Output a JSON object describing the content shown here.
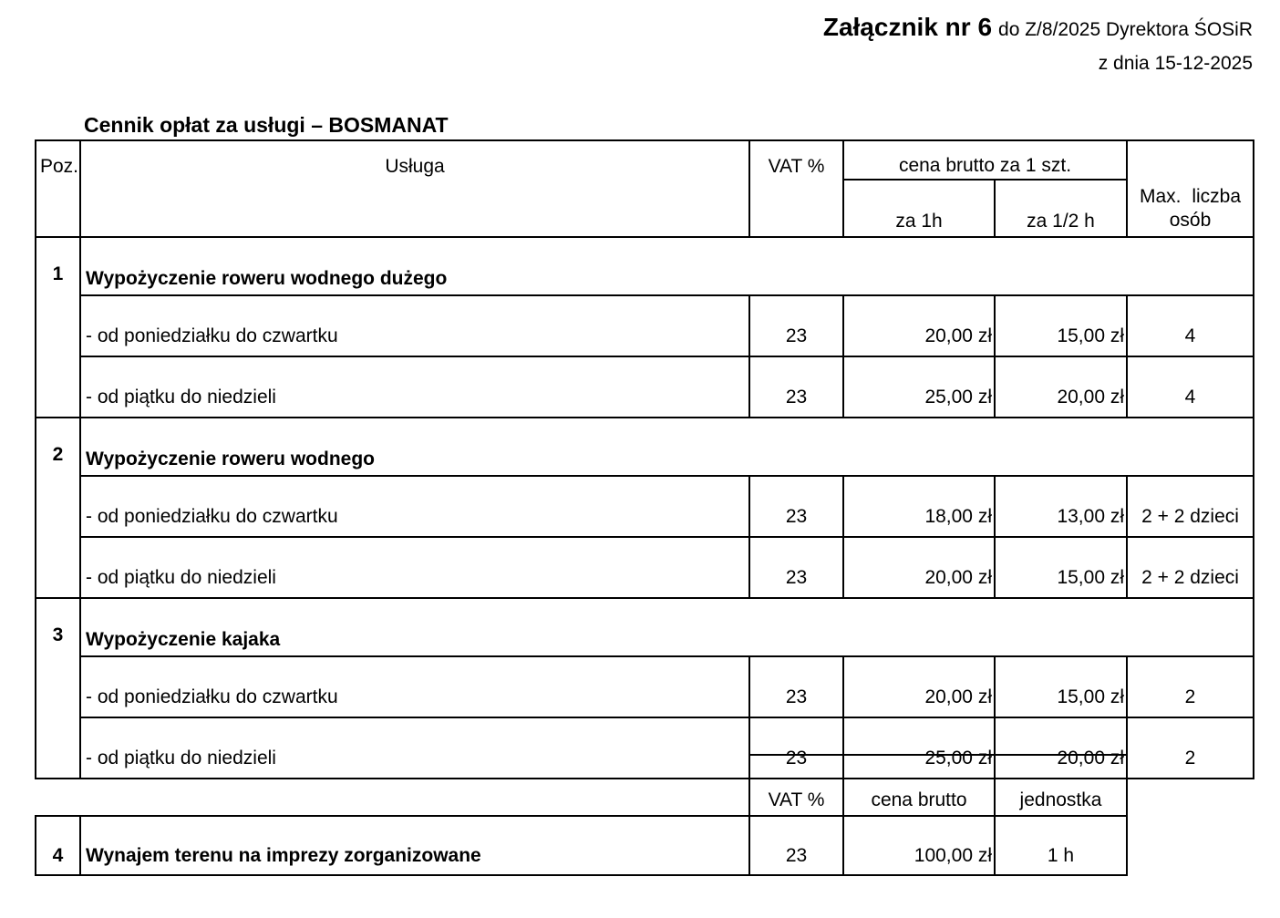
{
  "page_header": {
    "attachment_bold": "Załącznik nr 6",
    "attachment_rest": "do Z/8/2025 Dyrektora ŚOSiR",
    "date_line": "z dnia 15-12-2025"
  },
  "document_title": "Cennik opłat za usługi – BOSMANAT",
  "main_table": {
    "headers": {
      "poz": "Poz.",
      "usluga": "Usługa",
      "vat": "VAT %",
      "price_group": "cena brutto za 1 szt.",
      "per_1h": "za 1h",
      "per_half_h": "za 1/2 h",
      "max_persons": "Max. liczba osób"
    },
    "groups": [
      {
        "poz": "1",
        "title": "Wypożyczenie roweru wodnego dużego",
        "rows": [
          {
            "desc": "- od poniedziałku do czwartku",
            "vat": "23",
            "price_1h": "20,00 zł",
            "price_half_h": "15,00 zł",
            "max": "4"
          },
          {
            "desc": "- od piątku do niedzieli",
            "vat": "23",
            "price_1h": "25,00 zł",
            "price_half_h": "20,00 zł",
            "max": "4"
          }
        ]
      },
      {
        "poz": "2",
        "title": "Wypożyczenie roweru wodnego",
        "rows": [
          {
            "desc": "- od poniedziałku do czwartku",
            "vat": "23",
            "price_1h": "18,00 zł",
            "price_half_h": "13,00 zł",
            "max": "2 + 2 dzieci"
          },
          {
            "desc": "- od piątku do niedzieli",
            "vat": "23",
            "price_1h": "20,00 zł",
            "price_half_h": "15,00 zł",
            "max": "2 + 2 dzieci"
          }
        ]
      },
      {
        "poz": "3",
        "title": "Wypożyczenie kajaka",
        "rows": [
          {
            "desc": "- od poniedziałku do czwartku",
            "vat": "23",
            "price_1h": "20,00 zł",
            "price_half_h": "15,00 zł",
            "max": "2"
          },
          {
            "desc": "- od piątku do niedzieli",
            "vat": "23",
            "price_1h": "25,00 zł",
            "price_half_h": "20,00 zł",
            "max": "2"
          }
        ]
      }
    ]
  },
  "bottom_table": {
    "headers": {
      "vat": "VAT %",
      "price": "cena brutto",
      "unit": "jednostka"
    },
    "row": {
      "poz": "4",
      "title": "Wynajem terenu na imprezy zorganizowane",
      "vat": "23",
      "price": "100,00 zł",
      "unit": "1 h"
    }
  }
}
